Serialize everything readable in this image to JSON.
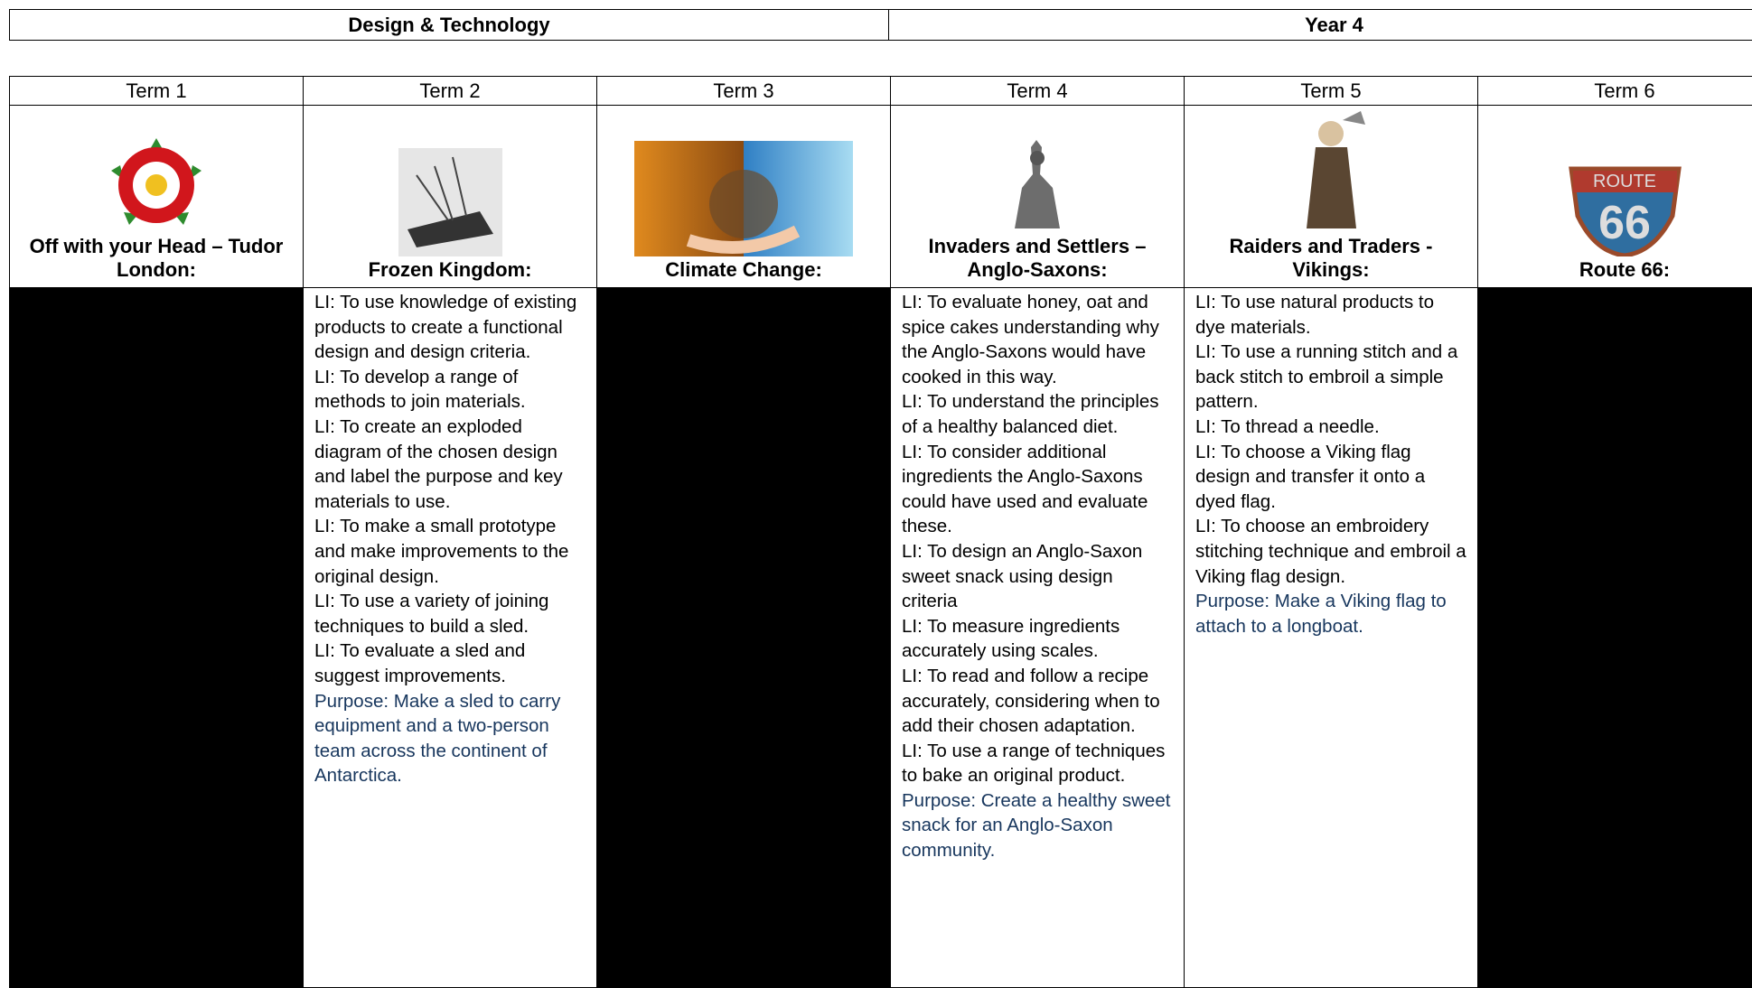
{
  "header": {
    "subject": "Design & Technology",
    "year": "Year 4"
  },
  "terms": [
    {
      "term": "Term 1",
      "title": "Off with your Head – Tudor London:"
    },
    {
      "term": "Term 2",
      "title": "Frozen Kingdom:",
      "lessons": [
        "LI: To use knowledge of existing products to create a functional design and design criteria.",
        "LI: To develop a range of methods to join materials.",
        "LI: To create an exploded diagram of the chosen design and label the purpose and key materials to use.",
        "LI: To make a small prototype and make improvements to the original design.",
        "LI: To use a variety of joining techniques to build a sled.",
        "LI: To evaluate a sled and suggest improvements."
      ],
      "purpose": "Purpose: Make a sled to carry equipment and a two-person team across the continent of Antarctica."
    },
    {
      "term": "Term 3",
      "title": "Climate Change:"
    },
    {
      "term": "Term 4",
      "title": "Invaders and Settlers – Anglo-Saxons:",
      "lessons": [
        "LI: To evaluate honey, oat and spice cakes understanding why the Anglo-Saxons would have cooked in this way.",
        "LI: To understand the principles of a healthy balanced diet.",
        "LI: To consider additional ingredients the Anglo-Saxons could have used and evaluate these.",
        "LI: To design an Anglo-Saxon sweet snack using design criteria",
        "LI: To measure ingredients accurately using scales.",
        "LI: To read and follow a recipe accurately, considering when to add their chosen adaptation.",
        "LI: To use a range of techniques to bake an original product."
      ],
      "purpose": "Purpose: Create a healthy sweet snack for an Anglo-Saxon community."
    },
    {
      "term": "Term 5",
      "title": "Raiders and Traders - Vikings:",
      "lessons": [
        "LI: To use natural products to dye materials.",
        "LI: To use a running stitch and a back stitch to embroil a simple pattern.",
        "LI: To thread a needle.",
        "LI: To choose a Viking flag design and transfer it onto a dyed flag.",
        "LI: To choose an embroidery stitching technique and embroil a Viking flag design."
      ],
      "purpose": "Purpose: Make a Viking flag to attach to a longboat."
    },
    {
      "term": "Term 6",
      "title": "Route 66:"
    }
  ]
}
